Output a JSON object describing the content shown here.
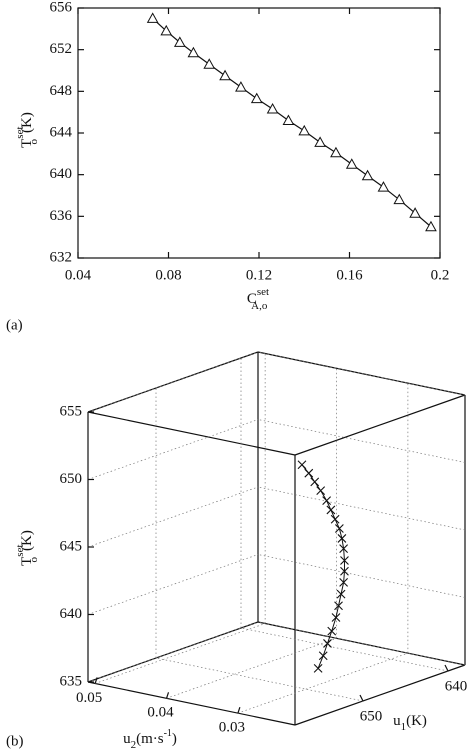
{
  "chart_data": [
    {
      "type": "line",
      "panel": "(a)",
      "ylabel": {
        "base": "T",
        "sup": "set",
        "sub": "o",
        "unit": "(K)"
      },
      "xlabel": {
        "base": "C",
        "sup": "set",
        "sub": "A,o"
      },
      "x": [
        0.073,
        0.079,
        0.085,
        0.091,
        0.098,
        0.105,
        0.112,
        0.119,
        0.126,
        0.133,
        0.14,
        0.147,
        0.154,
        0.161,
        0.168,
        0.175,
        0.182,
        0.189,
        0.196
      ],
      "values": [
        655,
        653.8,
        652.7,
        651.7,
        650.6,
        649.5,
        648.4,
        647.3,
        646.3,
        645.2,
        644.2,
        643.1,
        642.1,
        641.0,
        639.9,
        638.8,
        637.6,
        636.3,
        635.0
      ],
      "color": "#111111",
      "xlim": [
        0.04,
        0.2
      ],
      "xticks": [
        0.04,
        0.08,
        0.12,
        0.16,
        0.2
      ],
      "ylim": [
        632,
        656
      ],
      "yticks": [
        632,
        636,
        640,
        644,
        648,
        652,
        656
      ]
    },
    {
      "type": "scatter3d",
      "panel": "(b)",
      "zlabel": {
        "base": "T",
        "sup": "set",
        "sub": "o",
        "unit": "(K)"
      },
      "u2label": {
        "base": "u",
        "sub": "2",
        "pre": "(m·s",
        "sup": "-1",
        "post": ")"
      },
      "u1label": {
        "base": "u",
        "sub": "1",
        "unit": "(K)"
      },
      "u1": [
        655.5,
        654.7,
        654.0,
        653.3,
        652.6,
        652.1,
        651.6,
        651.1,
        650.8,
        650.6,
        650.5,
        650.5,
        650.6,
        650.9,
        651.2,
        651.5,
        652.0,
        652.5,
        653.0,
        653.6
      ],
      "u2": [
        0.024,
        0.024,
        0.024,
        0.024,
        0.024,
        0.024,
        0.024,
        0.024,
        0.024,
        0.024,
        0.024,
        0.024,
        0.024,
        0.024,
        0.024,
        0.024,
        0.024,
        0.024,
        0.024,
        0.024
      ],
      "z": [
        653.5,
        652.7,
        651.9,
        651.1,
        650.2,
        649.4,
        648.6,
        647.8,
        647.0,
        646.2,
        645.3,
        644.5,
        643.7,
        642.9,
        642.1,
        641.3,
        640.4,
        639.6,
        638.8,
        638.0
      ],
      "color": "#111111",
      "u1lim": [
        658,
        638
      ],
      "u1ticks": [
        650,
        640
      ],
      "u2lim": [
        0.022,
        0.051
      ],
      "u2ticks": [
        0.05,
        0.04,
        0.03
      ],
      "zlim": [
        635,
        655
      ],
      "zticks": [
        635,
        640,
        645,
        650,
        655
      ],
      "grid": true
    }
  ]
}
